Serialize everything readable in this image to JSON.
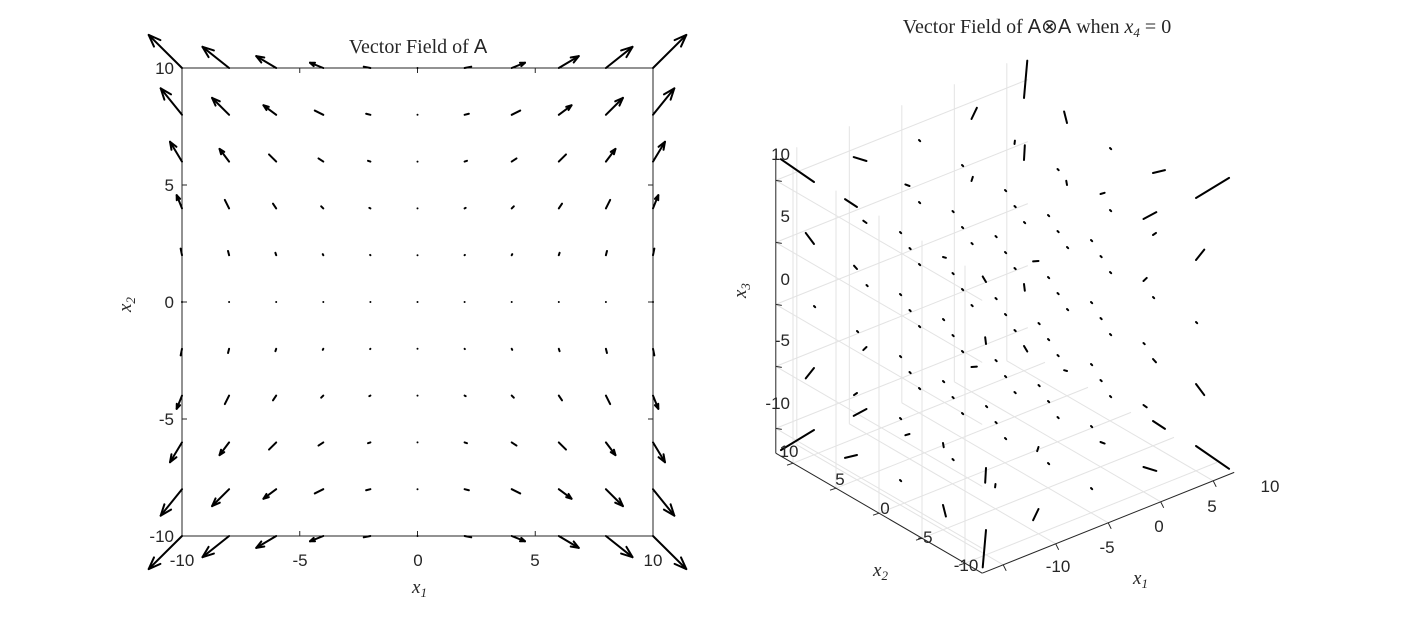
{
  "chart_data": [
    {
      "type": "quiver",
      "title_text": "Vector Field of",
      "title_symbol": "A",
      "xlabel": {
        "base": "x",
        "sub": "1"
      },
      "ylabel": {
        "base": "x",
        "sub": "2"
      },
      "xlim": [
        -10,
        10
      ],
      "ylim": [
        -10,
        10
      ],
      "xticks": [
        "-10",
        "-5",
        "0",
        "5",
        "10"
      ],
      "yticks": [
        "-10",
        "-5",
        "0",
        "5",
        "10"
      ],
      "grid": false,
      "box": true,
      "field": {
        "x": [
          -10,
          -8,
          -6,
          -4,
          -2,
          0,
          2,
          4,
          6,
          8,
          10
        ],
        "y": [
          -10,
          -8,
          -6,
          -4,
          -2,
          0,
          2,
          4,
          6,
          8,
          10
        ],
        "u": "x1*x2^2/100",
        "v": "x1^2*x2/100"
      },
      "arrow_color": "#000000"
    },
    {
      "type": "quiver3",
      "title_text": "Vector Field of",
      "title_symbol": "A⊗A",
      "title_condition": "when",
      "title_var": {
        "base": "x",
        "sub": "4"
      },
      "title_eq": "= 0",
      "xlabel": {
        "base": "x",
        "sub": "1"
      },
      "ylabel": {
        "base": "x",
        "sub": "2"
      },
      "zlabel": {
        "base": "x",
        "sub": "3"
      },
      "xlim": [
        -12,
        12
      ],
      "ylim": [
        -12,
        12
      ],
      "zlim": [
        -12,
        12
      ],
      "xticks": [
        "-10",
        "-5",
        "0",
        "5",
        "10"
      ],
      "yticks": [
        "-10",
        "-5",
        "0",
        "5",
        "10"
      ],
      "zticks": [
        "-10",
        "-5",
        "0",
        "5",
        "10"
      ],
      "grid": true,
      "field": {
        "grid": [
          -10,
          -5,
          0,
          5,
          10
        ],
        "x4": 0
      },
      "arrow_color": "#000000"
    }
  ]
}
